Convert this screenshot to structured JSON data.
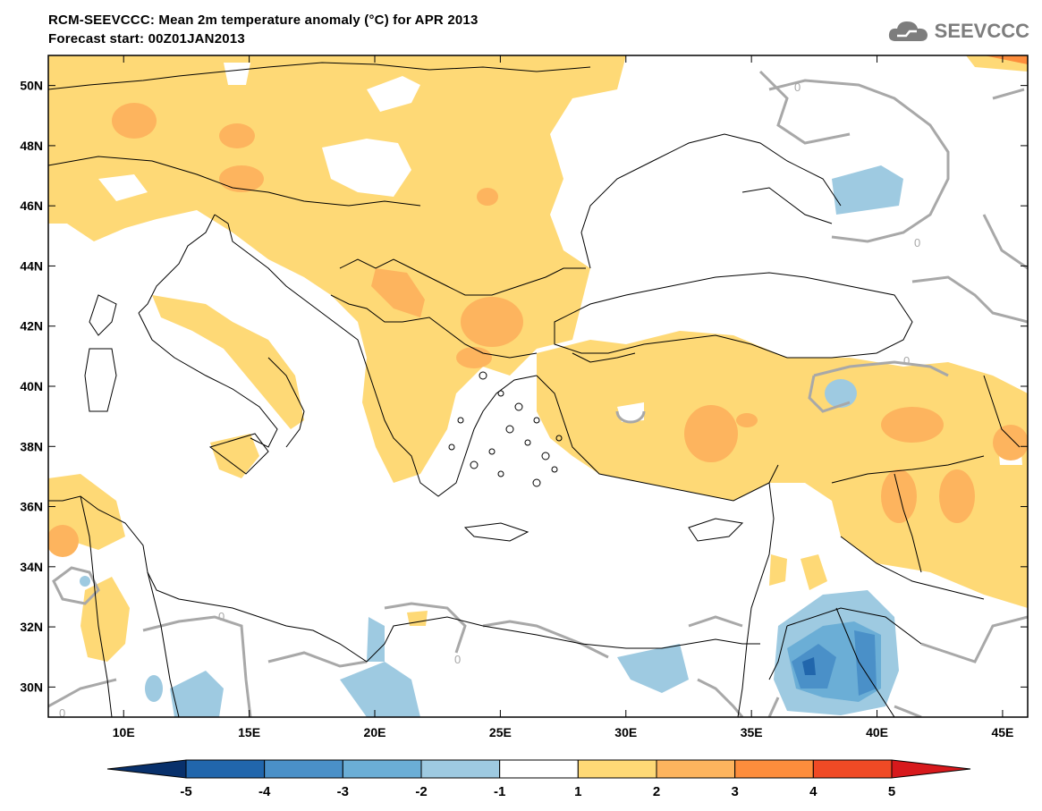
{
  "title": {
    "line1": "RCM-SEEVCCC: Mean 2m temperature anomaly (°C) for APR 2013",
    "line2": "Forecast start: 00Z01JAN2013"
  },
  "logo": {
    "text": "SEEVCCC",
    "icon": "cloud-icon"
  },
  "map": {
    "lon_range": [
      7,
      46
    ],
    "lat_range": [
      29,
      51
    ],
    "lat_ticks": [
      {
        "value": 50,
        "label": "50N"
      },
      {
        "value": 48,
        "label": "48N"
      },
      {
        "value": 46,
        "label": "46N"
      },
      {
        "value": 44,
        "label": "44N"
      },
      {
        "value": 42,
        "label": "42N"
      },
      {
        "value": 40,
        "label": "40N"
      },
      {
        "value": 38,
        "label": "38N"
      },
      {
        "value": 36,
        "label": "36N"
      },
      {
        "value": 34,
        "label": "34N"
      },
      {
        "value": 32,
        "label": "32N"
      },
      {
        "value": 30,
        "label": "30N"
      }
    ],
    "lon_ticks": [
      {
        "value": 10,
        "label": "10E"
      },
      {
        "value": 15,
        "label": "15E"
      },
      {
        "value": 20,
        "label": "20E"
      },
      {
        "value": 25,
        "label": "25E"
      },
      {
        "value": 30,
        "label": "30E"
      },
      {
        "value": 35,
        "label": "35E"
      },
      {
        "value": 40,
        "label": "40E"
      },
      {
        "value": 45,
        "label": "45E"
      }
    ],
    "contour_label": "0"
  },
  "colorbar": {
    "labels": [
      "-5",
      "-4",
      "-3",
      "-2",
      "-1",
      "1",
      "2",
      "3",
      "4",
      "5"
    ],
    "colors": [
      "#08306b",
      "#2166ac",
      "#4a90c8",
      "#6baed6",
      "#9ecae1",
      "#ffffff",
      "#fed976",
      "#fdb45e",
      "#fd8d3c",
      "#f04a25",
      "#d7191c"
    ]
  }
}
